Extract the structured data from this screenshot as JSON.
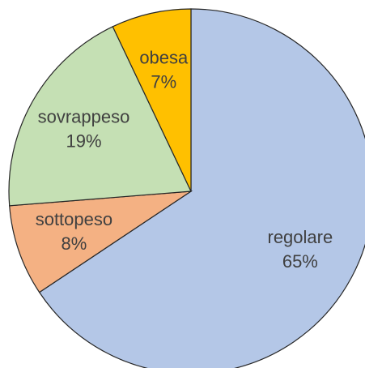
{
  "chart_data": {
    "type": "pie",
    "categories": [
      "regolare",
      "sottopeso",
      "sovrappeso",
      "obesa"
    ],
    "values": [
      65,
      8,
      19,
      7
    ],
    "value_labels": [
      "65%",
      "8%",
      "19%",
      "7%"
    ],
    "colors": [
      "#b4c7e7",
      "#f4b183",
      "#c5e0b4",
      "#ffc000"
    ]
  }
}
